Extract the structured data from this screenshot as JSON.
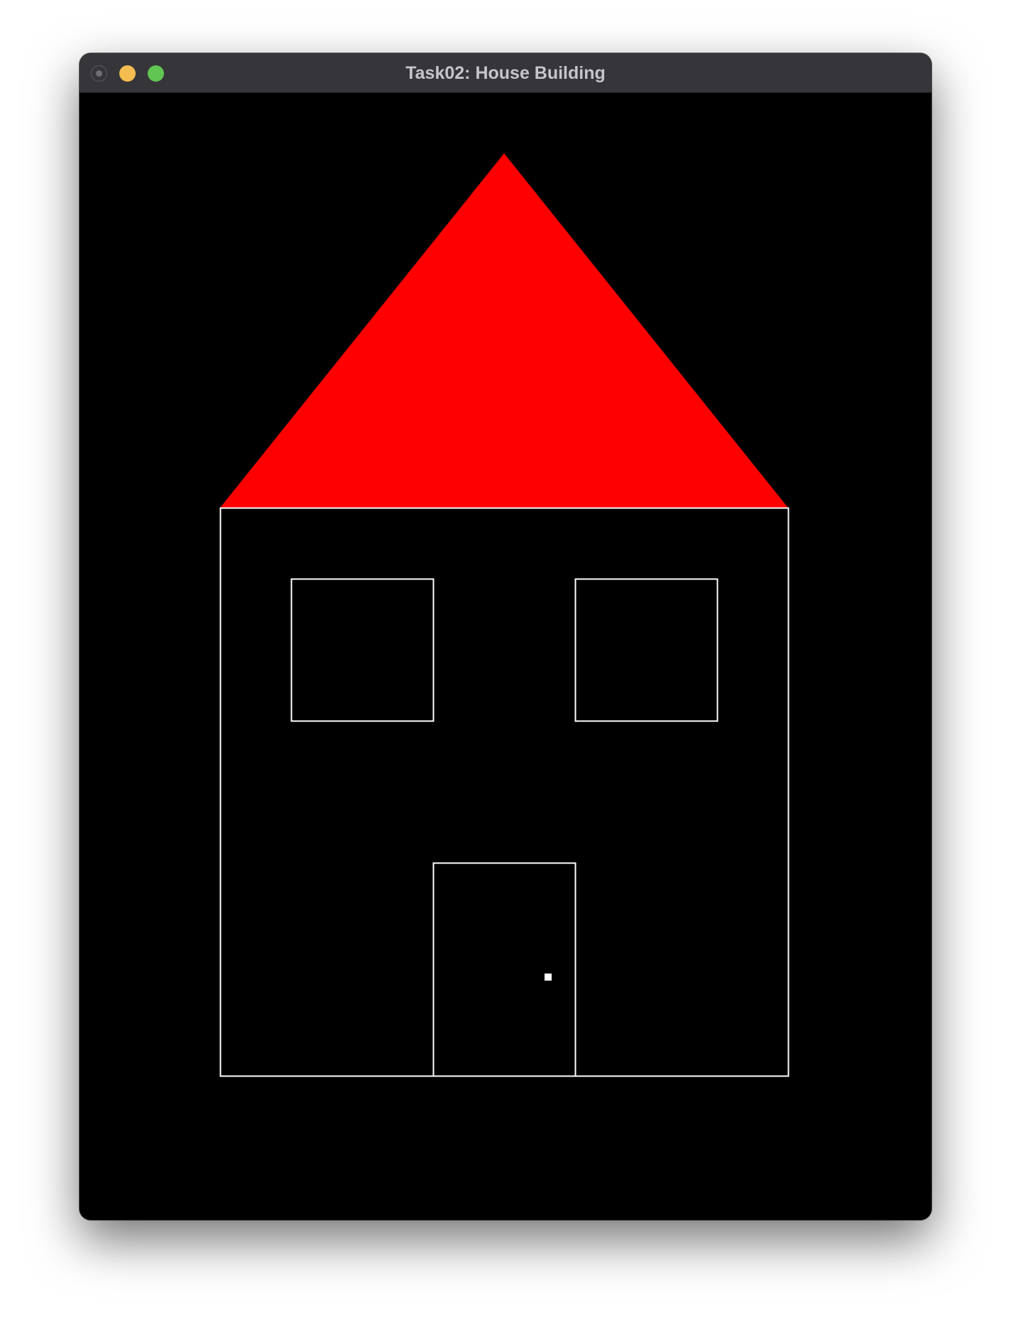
{
  "window": {
    "title": "Task02: House Building",
    "buttons": {
      "close": "#6f6e73",
      "minimize": "#f5bd4f",
      "zoom": "#61c554"
    }
  },
  "scene": {
    "background": "#000000",
    "roof": {
      "shape": "triangle",
      "fill": "#ff0000"
    },
    "walls": {
      "shape": "rectangle-outline",
      "stroke": "#ffffff"
    },
    "windows": [
      {
        "name": "left-window",
        "stroke": "#ffffff"
      },
      {
        "name": "right-window",
        "stroke": "#ffffff"
      }
    ],
    "door": {
      "stroke": "#ffffff"
    },
    "doorknob": {
      "fill": "#ffffff"
    }
  }
}
